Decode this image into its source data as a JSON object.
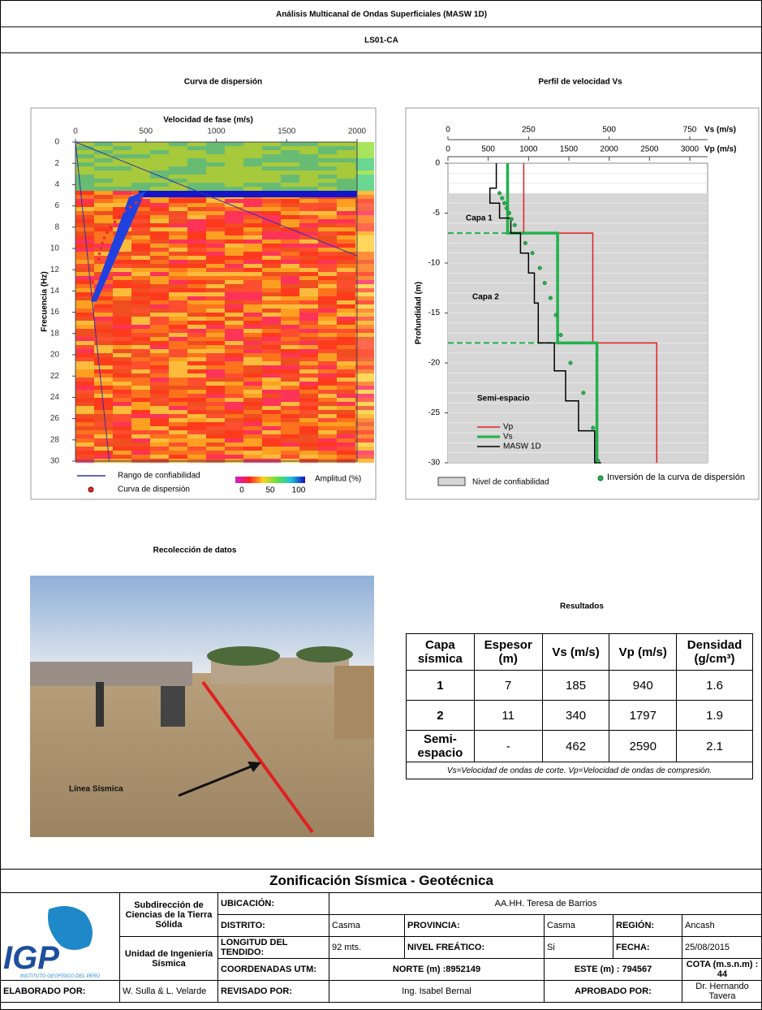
{
  "header": {
    "title": "Análisis Multicanal de Ondas Superficiales (MASW 1D)",
    "subtitle": "LS01-CA"
  },
  "chart_data": [
    {
      "type": "heatmap",
      "title": "Curva de dispersión",
      "xlabel": "Velocidad de fase (m/s)",
      "ylabel": "Frecuencia (Hz)",
      "xlim": [
        0,
        2000
      ],
      "xticks": [
        0,
        500,
        1000,
        1500,
        2000
      ],
      "ylim": [
        0,
        30
      ],
      "yticks": [
        0,
        2,
        4,
        6,
        8,
        10,
        12,
        14,
        16,
        18,
        20,
        22,
        24,
        26,
        28,
        30
      ],
      "y_reversed": true,
      "series": [
        {
          "name": "Rango de confiabilidad",
          "color": "#3030a8",
          "x": [
            0,
            2000,
            null,
            0,
            240
          ],
          "y": [
            0,
            10.7,
            null,
            0,
            30
          ]
        },
        {
          "name": "Curva de dispersión",
          "color": "#e03030",
          "x": [
            470,
            430,
            390,
            350,
            310,
            280,
            250,
            225,
            205,
            190,
            180,
            170,
            165
          ],
          "y": [
            5.3,
            5.7,
            6.1,
            6.5,
            7,
            7.5,
            8,
            8.5,
            9,
            9.5,
            10,
            10.5,
            11
          ]
        }
      ],
      "colorbar": {
        "label": "Amplitud (%)",
        "ticks": [
          0,
          50,
          100
        ]
      }
    },
    {
      "type": "line",
      "title": "Perfil de velocidad Vs",
      "xlabel": "Vp (m/s)",
      "x2label": "Vs (m/s)",
      "ylabel": "Profundidad (m)",
      "xlim": [
        0,
        3000
      ],
      "xticks": [
        0,
        500,
        1000,
        1500,
        2000,
        2500,
        3000
      ],
      "x2lim": [
        0,
        750
      ],
      "x2ticks": [
        0,
        250,
        500,
        750
      ],
      "ylim": [
        -30,
        0
      ],
      "yticks": [
        0,
        -5,
        -10,
        -15,
        -20,
        -25,
        -30
      ],
      "series": [
        {
          "name": "Vp",
          "color": "#e02020",
          "x": [
            940,
            940,
            1797,
            1797,
            2590,
            2590
          ],
          "y": [
            0,
            -7,
            -7,
            -18,
            -18,
            -30
          ]
        },
        {
          "name": "Vs",
          "color": "#22b14c",
          "axis": "x2",
          "x": [
            185,
            185,
            340,
            340,
            462,
            462
          ],
          "y": [
            0,
            -7,
            -7,
            -18,
            -18,
            -30
          ]
        },
        {
          "name": "MASW 1D",
          "color": "#000000",
          "axis": "x2",
          "x": [
            150,
            150,
            130,
            130,
            160,
            160,
            195,
            195,
            225,
            225,
            250,
            250,
            268,
            268,
            280,
            280,
            330,
            330,
            365,
            365,
            405,
            405,
            455,
            455,
            475,
            475
          ],
          "y": [
            0,
            -2.5,
            -2.5,
            -4,
            -4,
            -5.5,
            -5.5,
            -7,
            -7,
            -9,
            -9,
            -11,
            -11,
            -14,
            -14,
            -18,
            -18,
            -20.8,
            -20.8,
            -23.8,
            -23.8,
            -26.8,
            -26.8,
            -30,
            -30,
            -30
          ]
        },
        {
          "name": "Inversión de la curva de dispersión",
          "color": "#22b14c",
          "axis": "x2",
          "marker": "dot",
          "x": [
            160,
            168,
            175,
            182,
            190,
            197,
            207,
            240,
            262,
            285,
            300,
            318,
            335,
            350,
            380,
            420,
            450,
            465
          ],
          "y": [
            -3,
            -3.5,
            -4,
            -4.5,
            -5,
            -5.6,
            -6.2,
            -8,
            -9,
            -10.5,
            -12,
            -13.5,
            -15.2,
            -17.2,
            -20,
            -23,
            -26.5,
            -29.8
          ]
        }
      ],
      "shaded": {
        "name": "Nivel de confiabilidad",
        "top": -3
      },
      "annotations": [
        "Capa  1",
        "Capa 2",
        "Semi-espacio"
      ]
    }
  ],
  "photo": {
    "title": "Recolección de datos",
    "label": "Línea  Sísmica"
  },
  "results": {
    "title": "Resultados",
    "headers": [
      "Capa sísmica",
      "Espesor (m)",
      "Vs (m/s)",
      "Vp (m/s)",
      "Densidad (g/cm³)"
    ],
    "rows": [
      [
        1,
        7,
        185,
        940,
        1.6
      ],
      [
        2,
        11,
        340,
        1797,
        1.9
      ],
      [
        "Semi-espacio",
        "-",
        462,
        2590,
        2.1
      ]
    ],
    "note": "Vs=Velocidad de ondas de corte.   Vp=Velocidad de ondas de compresión."
  },
  "footer": {
    "title": "Zonificación Sísmica - Geotécnica",
    "logo": "IGP",
    "logo_caption": "INSTITUTO GEOFÍSICO DEL PERÚ",
    "unit1": "Subdirección de Ciencias de la Tierra Sólida",
    "unit2": "Unidad de Ingeniería Sísmica",
    "ubicacion_label": "UBICACIÓN:",
    "ubicacion": "AA.HH. Teresa de Barrios",
    "distrito_label": "DISTRITO:",
    "distrito": "Casma",
    "provincia_label": "PROVINCIA:",
    "provincia": "Casma",
    "region_label": "REGIÓN:",
    "region": "Ancash",
    "longitud_label": "LONGITUD DEL TENDIDO:",
    "longitud": "92 mts.",
    "nivel_label": "NIVEL FREÁTICO:",
    "nivel": "Si",
    "fecha_label": "FECHA:",
    "fecha": "25/08/2015",
    "coord_label": "COORDENADAS UTM:",
    "norte": "NORTE (m) :8952149",
    "este": "ESTE (m) : 794567",
    "cota": "COTA (m.s.n.m) : 44",
    "elaborado_label": "ELABORADO POR:",
    "elaborado": "W. Sulla & L. Velarde",
    "revisado_label": "REVISADO POR:",
    "revisado": "Ing. Isabel Bernal",
    "aprobado_label": "APROBADO POR:",
    "aprobado": "Dr. Hernando Tavera"
  }
}
